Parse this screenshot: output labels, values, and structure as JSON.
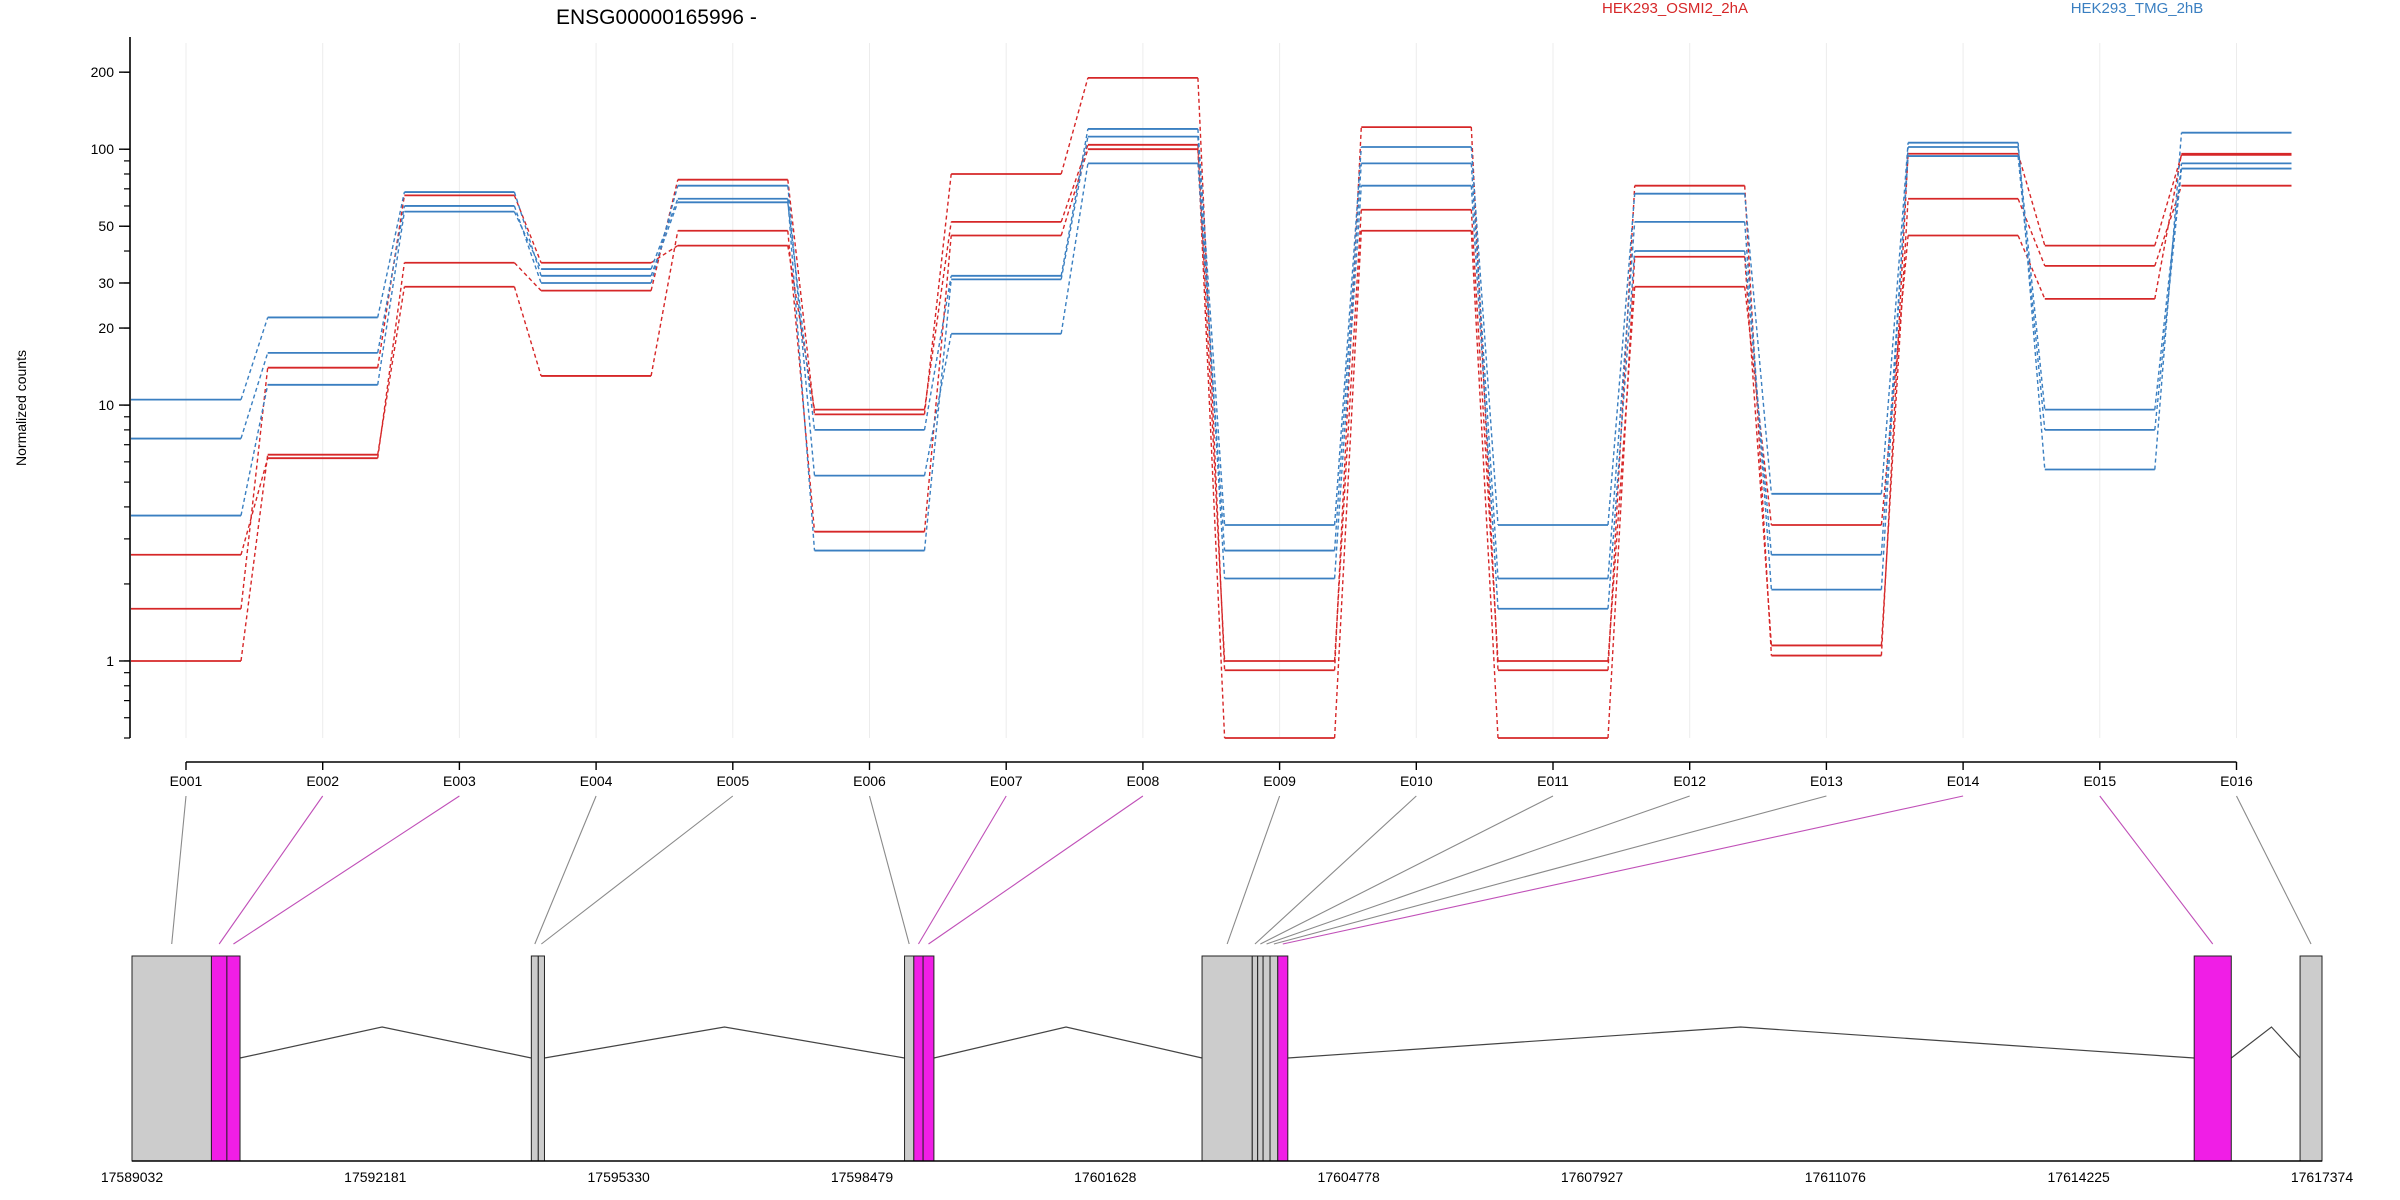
{
  "chart_data": {
    "type": "line",
    "title": "ENSG00000165996 -",
    "ylabel": "Normalized counts",
    "xlabel": "",
    "y_scale": "log",
    "ylim": [
      0.5,
      260
    ],
    "y_ticks": [
      1,
      10,
      20,
      30,
      50,
      100,
      200
    ],
    "y_tick_labels": [
      "1",
      "10",
      "20",
      "30",
      "50",
      "100",
      "200"
    ],
    "categories": [
      "E001",
      "E002",
      "E003",
      "E004",
      "E005",
      "E006",
      "E007",
      "E008",
      "E009",
      "E010",
      "E011",
      "E012",
      "E013",
      "E014",
      "E015",
      "E016"
    ],
    "grid": "vertical",
    "legend_position": "top-right",
    "series": [
      {
        "name": "HEK293_OSMI2_2hA",
        "group": "HEK293_OSMI2_2hA",
        "values": [
          2.6,
          6.2,
          36,
          28,
          76,
          9.2,
          80,
          190,
          0.92,
          122,
          0.92,
          72,
          1.05,
          96,
          42,
          95
        ]
      },
      {
        "name": "HEK293_OSMI2_2hA",
        "group": "HEK293_OSMI2_2hA",
        "values": [
          1.0,
          6.4,
          29,
          13,
          48,
          3.2,
          46,
          100,
          0.5,
          48,
          0.5,
          38,
          1.15,
          64,
          35,
          72
        ]
      },
      {
        "name": "HEK293_OSMI2_2hA",
        "group": "HEK293_OSMI2_2hA",
        "values": [
          1.6,
          14,
          66,
          36,
          42,
          9.6,
          52,
          104,
          1.0,
          58,
          1.0,
          29,
          3.4,
          46,
          26,
          96
        ]
      },
      {
        "name": "HEK293_TMG_2hB",
        "group": "HEK293_TMG_2hB",
        "values": [
          10.5,
          22,
          68,
          32,
          62,
          8.0,
          32,
          120,
          3.4,
          102,
          3.4,
          67,
          4.5,
          106,
          5.6,
          116
        ]
      },
      {
        "name": "HEK293_TMG_2hB",
        "group": "HEK293_TMG_2hB",
        "values": [
          7.4,
          16,
          60,
          30,
          72,
          5.3,
          19,
          88,
          2.7,
          88,
          2.1,
          52,
          1.9,
          102,
          9.6,
          88
        ]
      },
      {
        "name": "HEK293_TMG_2hB",
        "group": "HEK293_TMG_2hB",
        "values": [
          3.7,
          12,
          57,
          34,
          64,
          2.7,
          31,
          112,
          2.1,
          72,
          1.6,
          40,
          2.6,
          94,
          8.0,
          84
        ]
      }
    ],
    "colors": {
      "HEK293_OSMI2_2hA": "#d62728",
      "HEK293_TMG_2hB": "#3a7fc1"
    },
    "gene_model": {
      "strand": "-",
      "genome_start": 17589032,
      "genome_end": 17617374,
      "axis_tick_labels": [
        "17589032",
        "17592181",
        "17595330",
        "17598479",
        "17601628",
        "17604778",
        "17607927",
        "17611076",
        "17614225",
        "17617374"
      ],
      "axis_ticks": [
        17589032,
        17592181,
        17595330,
        17598479,
        17601628,
        17604778,
        17607927,
        17611076,
        17614225,
        17617374
      ],
      "exonic_parts": [
        {
          "id": "E001",
          "start": 17589032,
          "end": 17590060,
          "highlight": false
        },
        {
          "id": "E002",
          "start": 17590060,
          "end": 17590260,
          "highlight": true
        },
        {
          "id": "E003",
          "start": 17590260,
          "end": 17590430,
          "highlight": true
        },
        {
          "id": "E004",
          "start": 17594200,
          "end": 17594290,
          "highlight": false
        },
        {
          "id": "E005",
          "start": 17594290,
          "end": 17594370,
          "highlight": false
        },
        {
          "id": "E006",
          "start": 17599030,
          "end": 17599150,
          "highlight": false
        },
        {
          "id": "E007",
          "start": 17599150,
          "end": 17599270,
          "highlight": true
        },
        {
          "id": "E008",
          "start": 17599270,
          "end": 17599410,
          "highlight": true
        },
        {
          "id": "E009",
          "start": 17602880,
          "end": 17603530,
          "highlight": false
        },
        {
          "id": "E010",
          "start": 17603530,
          "end": 17603600,
          "highlight": false
        },
        {
          "id": "E011",
          "start": 17603600,
          "end": 17603670,
          "highlight": false
        },
        {
          "id": "E012",
          "start": 17603670,
          "end": 17603760,
          "highlight": false
        },
        {
          "id": "E013",
          "start": 17603760,
          "end": 17603860,
          "highlight": false
        },
        {
          "id": "E014",
          "start": 17603860,
          "end": 17603990,
          "highlight": true
        },
        {
          "id": "E015",
          "start": 17615720,
          "end": 17616200,
          "highlight": true
        },
        {
          "id": "E016",
          "start": 17617090,
          "end": 17617374,
          "highlight": false
        }
      ],
      "introns": [
        {
          "start": 17590430,
          "end": 17594200,
          "apex": 17592270
        },
        {
          "start": 17594370,
          "end": 17599030,
          "apex": 17596700
        },
        {
          "start": 17599410,
          "end": 17602880,
          "apex": 17601120
        },
        {
          "start": 17603990,
          "end": 17615720,
          "apex": 17609850
        },
        {
          "start": 17616200,
          "end": 17617090,
          "apex": 17616720
        }
      ]
    }
  }
}
